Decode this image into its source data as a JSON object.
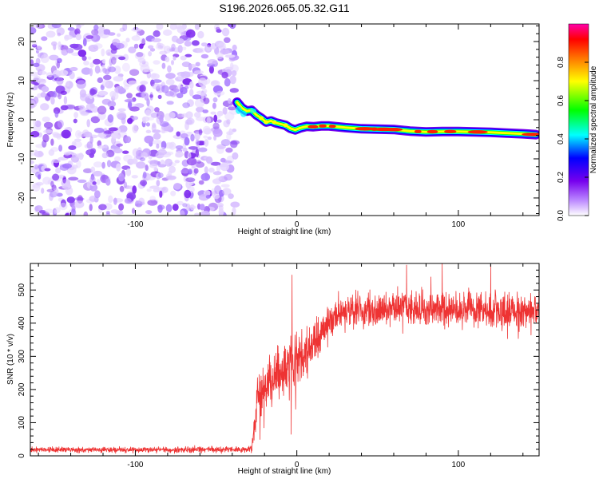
{
  "title": "S196.2026.065.05.32.G11",
  "colors": {
    "snr_line": "#ee3333",
    "noise_purple": "#7a22ee",
    "axis": "#000000"
  },
  "chart_data": [
    {
      "type": "heatmap",
      "name": "spectrogram",
      "xlabel": "Height of straight line (km)",
      "ylabel": "Frequency (Hz)",
      "xlim": [
        -165,
        150
      ],
      "ylim": [
        -24.5,
        24.5
      ],
      "xticks": [
        -100,
        0,
        100
      ],
      "yticks": [
        -20,
        -10,
        0,
        10,
        20
      ],
      "colorbar": {
        "label": "Normalized spectral amplitude",
        "range": [
          0,
          1
        ],
        "ticks": [
          "0.0",
          "0.2",
          "0.4",
          "0.6",
          "0.8"
        ],
        "colormap": [
          "#ffffff",
          "#bb88ff",
          "#7700ee",
          "#0000ff",
          "#00ffff",
          "#00ff00",
          "#ffff00",
          "#ff7700",
          "#ff0000",
          "#ff00aa"
        ]
      },
      "noise_region_x": [
        -165,
        -38
      ],
      "signal_track": {
        "x": [
          -37,
          -34,
          -31,
          -28,
          -25,
          -22,
          -19,
          -16,
          -13,
          -10,
          -7,
          -4,
          -1,
          2,
          6,
          10,
          15,
          20,
          30,
          40,
          50,
          60,
          70,
          80,
          90,
          100,
          110,
          120,
          130,
          140,
          148
        ],
        "freq": [
          4.5,
          3.0,
          2.2,
          2.4,
          1.2,
          0.4,
          -0.6,
          -0.3,
          -0.8,
          -1.1,
          -1.4,
          -2.2,
          -2.6,
          -2.1,
          -1.7,
          -1.8,
          -1.6,
          -1.6,
          -2.0,
          -2.3,
          -2.4,
          -2.5,
          -2.9,
          -3.1,
          -3.0,
          -3.0,
          -3.1,
          -3.2,
          -3.4,
          -3.6,
          -3.8
        ]
      }
    },
    {
      "type": "line",
      "name": "snr",
      "xlabel": "Height of straight line (km)",
      "ylabel": "SNR (10 * v/v)",
      "xlim": [
        -165,
        150
      ],
      "ylim": [
        0,
        580
      ],
      "xticks": [
        -100,
        0,
        100
      ],
      "yticks": [
        0,
        100,
        200,
        300,
        400,
        500
      ],
      "envelope": {
        "x": [
          -165,
          -120,
          -80,
          -40,
          -28,
          -25,
          -20,
          -10,
          0,
          10,
          20,
          30,
          40,
          60,
          80,
          100,
          120,
          140,
          150
        ],
        "mean": [
          18,
          18,
          18,
          20,
          20,
          150,
          200,
          250,
          280,
          340,
          400,
          430,
          440,
          445,
          440,
          445,
          435,
          435,
          440
        ],
        "spread": [
          7,
          7,
          7,
          7,
          8,
          60,
          70,
          70,
          70,
          55,
          45,
          45,
          45,
          45,
          45,
          45,
          45,
          45,
          45
        ]
      },
      "peaks": [
        {
          "x": -3,
          "y": 545
        },
        {
          "x": -3.5,
          "y": 65
        },
        {
          "x": 68,
          "y": 575
        },
        {
          "x": 90,
          "y": 580
        },
        {
          "x": 120,
          "y": 575
        }
      ]
    }
  ]
}
